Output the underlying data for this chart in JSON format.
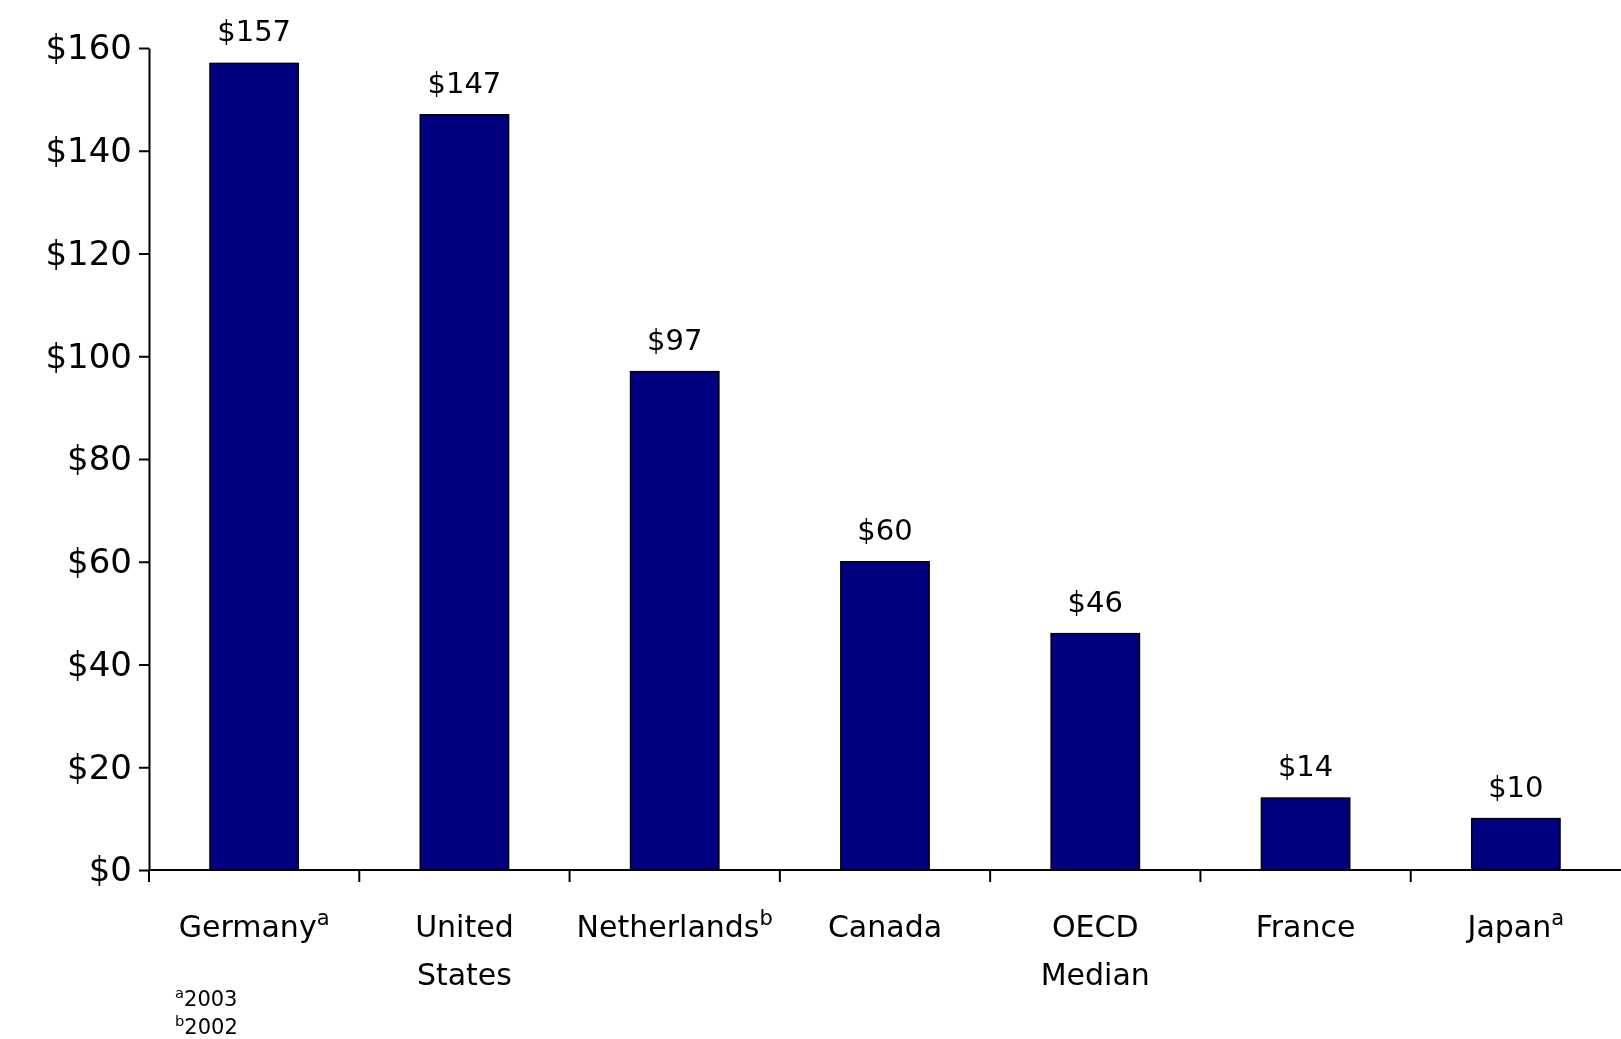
{
  "chart_data": {
    "type": "bar",
    "categories": [
      "Germany$^{a}$",
      "United States",
      "Netherlands$^{b}$",
      "Canada",
      "OECD Median",
      "France",
      "Japan$^{a}$"
    ],
    "values": [
      157,
      147,
      97,
      60,
      46,
      14,
      10
    ],
    "value_labels": [
      "$157",
      "$147",
      "$97",
      "$60",
      "$46",
      "$14",
      "$10"
    ],
    "color": "#000080",
    "ylim": [
      0,
      160
    ],
    "yticks": [
      {
        "value": 0,
        "label": "$0"
      },
      {
        "value": 20,
        "label": "$20"
      },
      {
        "value": 40,
        "label": "$40"
      },
      {
        "value": 60,
        "label": "$60"
      },
      {
        "value": 80,
        "label": "$80"
      },
      {
        "value": 100,
        "label": "$100"
      },
      {
        "value": 120,
        "label": "$120"
      },
      {
        "value": 140,
        "label": "$140"
      },
      {
        "value": 160,
        "label": "$160"
      }
    ],
    "annotations": [
      "$^{a}$2003",
      "$^{b}$2002"
    ]
  }
}
